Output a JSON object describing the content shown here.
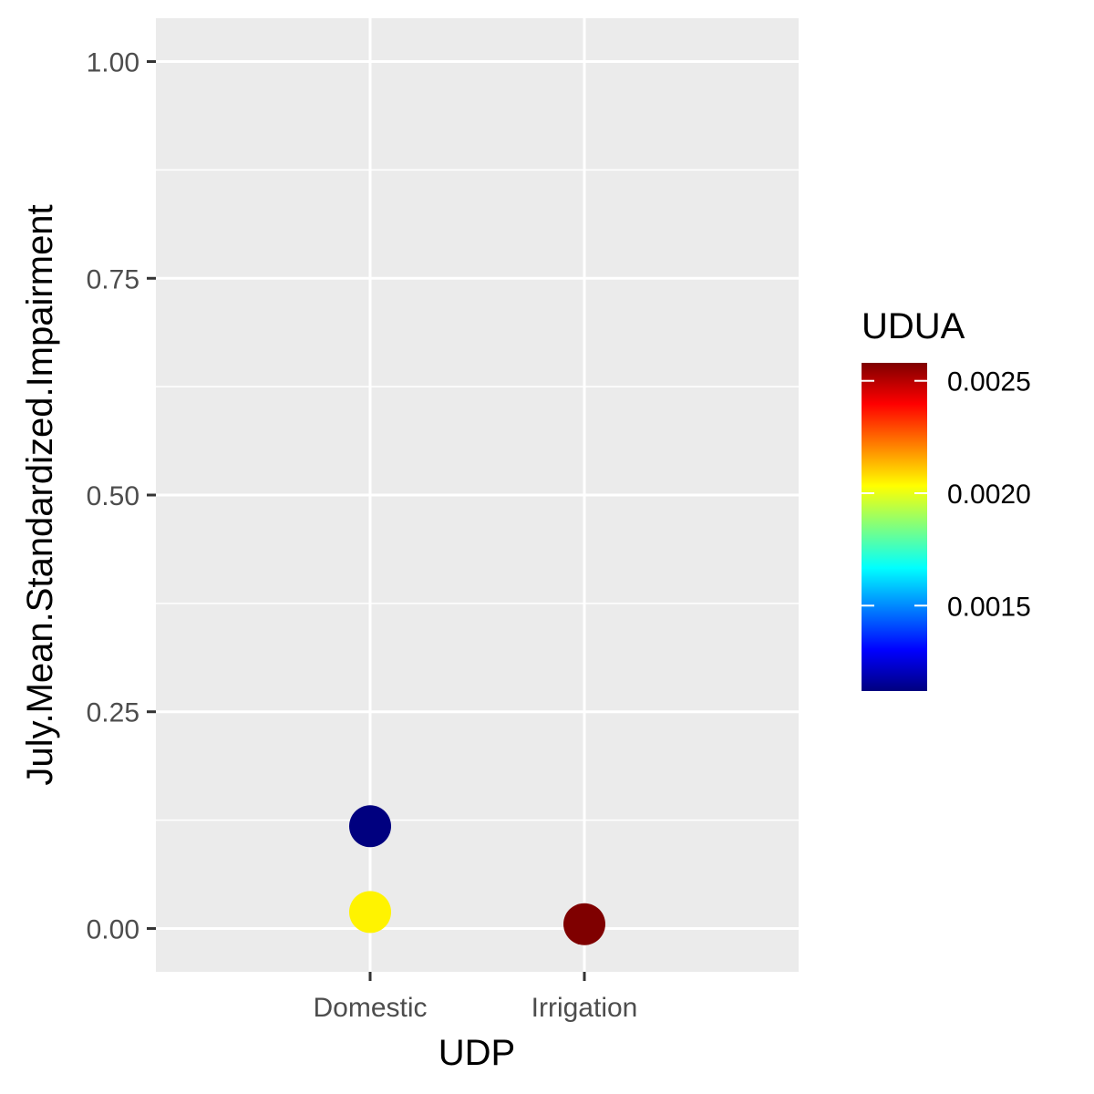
{
  "chart_data": {
    "type": "scatter",
    "title": "",
    "xlabel": "UDP",
    "ylabel": "July.Mean.Standardized.Impairment",
    "categories": [
      "Domestic",
      "Irrigation"
    ],
    "ylim": [
      -0.05,
      1.05
    ],
    "yticks": [
      {
        "value": 0.0,
        "label": "0.00"
      },
      {
        "value": 0.25,
        "label": "0.25"
      },
      {
        "value": 0.5,
        "label": "0.50"
      },
      {
        "value": 0.75,
        "label": "0.75"
      },
      {
        "value": 1.0,
        "label": "1.00"
      }
    ],
    "grid": true,
    "points": [
      {
        "x": "Domestic",
        "y": 0.118,
        "color_value": 0.00112
      },
      {
        "x": "Domestic",
        "y": 0.019,
        "color_value": 0.00205
      },
      {
        "x": "Irrigation",
        "y": 0.005,
        "color_value": 0.00258
      }
    ],
    "legend": {
      "title": "UDUA",
      "placement": "right",
      "range": [
        0.00112,
        0.00258
      ],
      "ticks": [
        {
          "value": 0.0015,
          "label": "0.0015"
        },
        {
          "value": 0.002,
          "label": "0.0020"
        },
        {
          "value": 0.0025,
          "label": "0.0025"
        }
      ],
      "colorscale": [
        "#00007f",
        "#0000ff",
        "#007fff",
        "#00ffff",
        "#7fff7f",
        "#ffff00",
        "#ff7f00",
        "#ff0000",
        "#7f0000"
      ]
    },
    "colors": {
      "panel": "#ebebeb",
      "grid": "#ffffff",
      "tick": "#333333"
    }
  }
}
